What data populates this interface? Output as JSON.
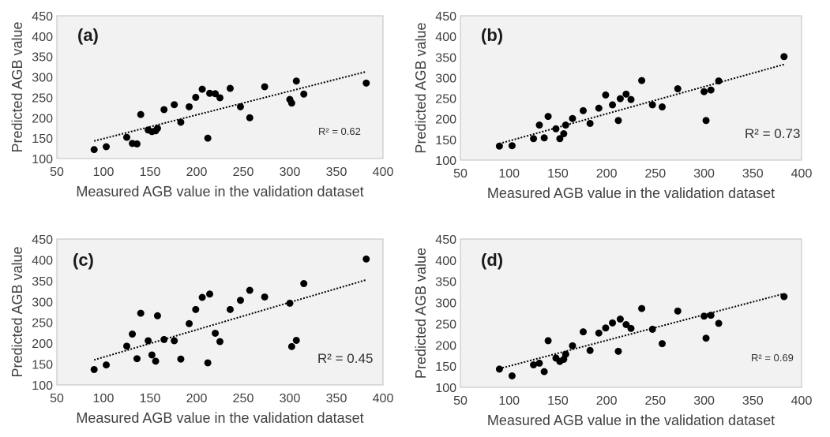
{
  "colors": {
    "plot_bg": "#f2f2f2",
    "point": "#000000",
    "trend": "#000000",
    "border": "#bfbfbf"
  },
  "chart_data": [
    {
      "type": "scatter",
      "panel_label": "(a)",
      "r2_label": "R² = 0.62",
      "xlabel": "Measured AGB value in the validation dataset",
      "ylabel": "Predicted AGB value",
      "xlim": [
        50,
        400
      ],
      "ylim": [
        100,
        450
      ],
      "xticks": [
        "50",
        "100",
        "150",
        "200",
        "250",
        "300",
        "350",
        "400"
      ],
      "yticks": [
        "100",
        "150",
        "200",
        "250",
        "300",
        "350",
        "400",
        "450"
      ],
      "trendline": [
        [
          90,
          143
        ],
        [
          382,
          313
        ]
      ],
      "points": [
        [
          90,
          122
        ],
        [
          103,
          129
        ],
        [
          125,
          152
        ],
        [
          131,
          137
        ],
        [
          136,
          136
        ],
        [
          140,
          208
        ],
        [
          148,
          170
        ],
        [
          152,
          166
        ],
        [
          156,
          168
        ],
        [
          158,
          174
        ],
        [
          165,
          220
        ],
        [
          176,
          232
        ],
        [
          183,
          189
        ],
        [
          192,
          227
        ],
        [
          199,
          250
        ],
        [
          206,
          270
        ],
        [
          212,
          150
        ],
        [
          214,
          260
        ],
        [
          220,
          259
        ],
        [
          225,
          249
        ],
        [
          236,
          272
        ],
        [
          247,
          227
        ],
        [
          257,
          200
        ],
        [
          273,
          276
        ],
        [
          300,
          245
        ],
        [
          302,
          236
        ],
        [
          307,
          290
        ],
        [
          315,
          258
        ],
        [
          382,
          285
        ]
      ]
    },
    {
      "type": "scatter",
      "panel_label": "(b)",
      "r2_label": "R² = 0.73",
      "xlabel": "Measured AGB value in the validation dataset",
      "ylabel": "Predicted AGB value",
      "xlim": [
        50,
        400
      ],
      "ylim": [
        100,
        450
      ],
      "xticks": [
        "50",
        "100",
        "150",
        "200",
        "250",
        "300",
        "350",
        "400"
      ],
      "yticks": [
        "100",
        "150",
        "200",
        "250",
        "300",
        "350",
        "400",
        "450"
      ],
      "trendline": [
        [
          90,
          140
        ],
        [
          382,
          332
        ]
      ],
      "points": [
        [
          90,
          134
        ],
        [
          103,
          135
        ],
        [
          125,
          152
        ],
        [
          131,
          185
        ],
        [
          136,
          154
        ],
        [
          140,
          206
        ],
        [
          148,
          176
        ],
        [
          152,
          152
        ],
        [
          156,
          164
        ],
        [
          158,
          185
        ],
        [
          165,
          201
        ],
        [
          176,
          220
        ],
        [
          183,
          189
        ],
        [
          192,
          226
        ],
        [
          199,
          258
        ],
        [
          206,
          234
        ],
        [
          212,
          196
        ],
        [
          214,
          249
        ],
        [
          220,
          260
        ],
        [
          225,
          247
        ],
        [
          236,
          293
        ],
        [
          247,
          234
        ],
        [
          257,
          229
        ],
        [
          273,
          273
        ],
        [
          300,
          266
        ],
        [
          302,
          196
        ],
        [
          307,
          270
        ],
        [
          315,
          292
        ],
        [
          382,
          351
        ]
      ]
    },
    {
      "type": "scatter",
      "panel_label": "(c)",
      "r2_label": "R² = 0.45",
      "xlabel": "Measured AGB value in the validation dataset",
      "ylabel": "Predicted AGB value",
      "xlim": [
        50,
        400
      ],
      "ylim": [
        100,
        450
      ],
      "xticks": [
        "50",
        "100",
        "150",
        "200",
        "250",
        "300",
        "350",
        "400"
      ],
      "yticks": [
        "100",
        "150",
        "200",
        "250",
        "300",
        "350",
        "400",
        "450"
      ],
      "trendline": [
        [
          90,
          160
        ],
        [
          382,
          352
        ]
      ],
      "points": [
        [
          90,
          137
        ],
        [
          103,
          148
        ],
        [
          125,
          193
        ],
        [
          131,
          222
        ],
        [
          136,
          163
        ],
        [
          140,
          272
        ],
        [
          148,
          206
        ],
        [
          152,
          172
        ],
        [
          156,
          157
        ],
        [
          158,
          266
        ],
        [
          165,
          209
        ],
        [
          176,
          206
        ],
        [
          183,
          162
        ],
        [
          192,
          247
        ],
        [
          199,
          281
        ],
        [
          206,
          310
        ],
        [
          212,
          153
        ],
        [
          214,
          318
        ],
        [
          220,
          224
        ],
        [
          225,
          204
        ],
        [
          236,
          281
        ],
        [
          247,
          303
        ],
        [
          257,
          327
        ],
        [
          273,
          311
        ],
        [
          300,
          296
        ],
        [
          302,
          192
        ],
        [
          307,
          207
        ],
        [
          315,
          343
        ],
        [
          382,
          402
        ]
      ]
    },
    {
      "type": "scatter",
      "panel_label": "(d)",
      "r2_label": "R² = 0.69",
      "xlabel": "Measured AGB value in the validation dataset",
      "ylabel": "Predicted AGB value",
      "xlim": [
        50,
        400
      ],
      "ylim": [
        100,
        450
      ],
      "xticks": [
        "50",
        "100",
        "150",
        "200",
        "250",
        "300",
        "350",
        "400"
      ],
      "yticks": [
        "100",
        "150",
        "200",
        "250",
        "300",
        "350",
        "400",
        "450"
      ],
      "trendline": [
        [
          90,
          144
        ],
        [
          382,
          321
        ]
      ],
      "points": [
        [
          90,
          143
        ],
        [
          103,
          127
        ],
        [
          125,
          153
        ],
        [
          131,
          157
        ],
        [
          136,
          137
        ],
        [
          140,
          210
        ],
        [
          148,
          169
        ],
        [
          152,
          161
        ],
        [
          156,
          166
        ],
        [
          158,
          178
        ],
        [
          165,
          198
        ],
        [
          176,
          231
        ],
        [
          183,
          187
        ],
        [
          192,
          228
        ],
        [
          199,
          240
        ],
        [
          206,
          252
        ],
        [
          212,
          185
        ],
        [
          214,
          261
        ],
        [
          220,
          248
        ],
        [
          225,
          239
        ],
        [
          236,
          286
        ],
        [
          247,
          237
        ],
        [
          257,
          203
        ],
        [
          273,
          280
        ],
        [
          300,
          268
        ],
        [
          302,
          216
        ],
        [
          307,
          270
        ],
        [
          315,
          251
        ],
        [
          382,
          314
        ]
      ]
    }
  ]
}
